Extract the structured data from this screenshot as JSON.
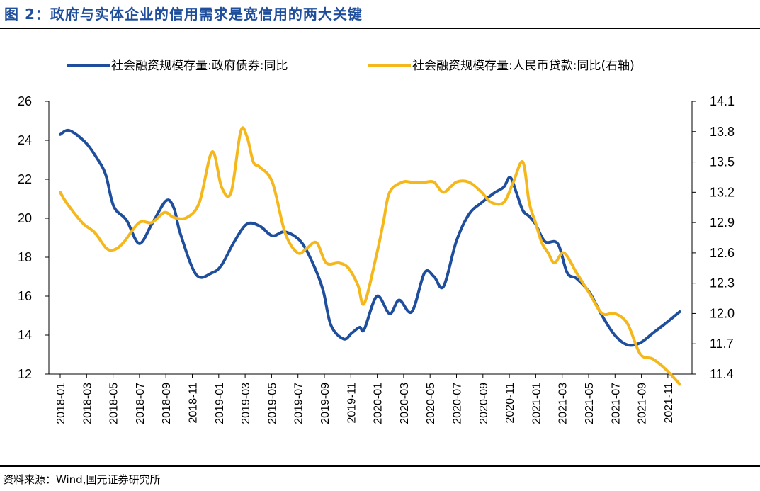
{
  "header": {
    "title": "图 2：政府与实体企业的信用需求是宽信用的两大关键"
  },
  "footer": {
    "source": "资料来源：Wind,国元证券研究所"
  },
  "chart_data": {
    "type": "line",
    "title": "",
    "xlabel": "",
    "ylabel": "",
    "legend_position": "top",
    "grid": false,
    "x_tick_labels": [
      "2018-01",
      "2018-03",
      "2018-05",
      "2018-07",
      "2018-09",
      "2018-11",
      "2019-01",
      "2019-03",
      "2019-05",
      "2019-07",
      "2019-09",
      "2019-11",
      "2020-01",
      "2020-03",
      "2020-05",
      "2020-07",
      "2020-09",
      "2020-11",
      "2021-01",
      "2021-03",
      "2021-05",
      "2021-07",
      "2021-09",
      "2021-11"
    ],
    "y_left": {
      "min": 12,
      "max": 26,
      "ticks": [
        12,
        14,
        16,
        18,
        20,
        22,
        24,
        26
      ]
    },
    "y_right": {
      "min": 11.4,
      "max": 14.1,
      "ticks": [
        "11.4",
        "11.7",
        "12.0",
        "12.3",
        "12.6",
        "12.9",
        "13.2",
        "13.5",
        "13.8",
        "14.1"
      ]
    },
    "series": [
      {
        "name": "社会融资规模存量:政府债券:同比",
        "axis": "left",
        "color": "#1f4e9c",
        "x": [
          2018.042,
          2018.1,
          2018.2,
          2018.28,
          2018.33,
          2018.38,
          2018.46,
          2018.54,
          2018.62,
          2018.71,
          2018.76,
          2018.8,
          2018.9,
          2019.0,
          2019.06,
          2019.14,
          2019.22,
          2019.3,
          2019.38,
          2019.46,
          2019.56,
          2019.64,
          2019.7,
          2019.75,
          2019.83,
          2019.88,
          2019.93,
          2019.96,
          2020.04,
          2020.12,
          2020.18,
          2020.26,
          2020.34,
          2020.4,
          2020.46,
          2020.54,
          2020.62,
          2020.7,
          2020.78,
          2020.84,
          2020.88,
          2020.92,
          2020.96,
          2021.0,
          2021.04,
          2021.1,
          2021.18,
          2021.24,
          2021.3,
          2021.38,
          2021.46,
          2021.54,
          2021.62,
          2021.7,
          2021.78,
          2021.86,
          2021.95
        ],
        "values": [
          24.3,
          24.5,
          23.9,
          23.0,
          22.2,
          20.6,
          19.9,
          18.7,
          19.7,
          20.9,
          20.5,
          19.2,
          17.1,
          17.2,
          17.6,
          18.8,
          19.7,
          19.6,
          19.1,
          19.3,
          18.8,
          17.6,
          16.3,
          14.5,
          13.8,
          14.1,
          14.4,
          14.3,
          16.0,
          15.1,
          15.8,
          15.2,
          17.2,
          17.0,
          16.5,
          18.8,
          20.2,
          20.8,
          21.3,
          21.6,
          22.1,
          21.3,
          20.4,
          20.1,
          19.7,
          18.8,
          18.7,
          17.2,
          16.9,
          16.2,
          15.0,
          14.0,
          13.5,
          13.6,
          14.1,
          14.6,
          15.2
        ]
      },
      {
        "name": "社会融资规模存量:人民币贷款:同比(右轴)",
        "axis": "right",
        "color": "#f5b81c",
        "x": [
          2018.042,
          2018.08,
          2018.18,
          2018.26,
          2018.33,
          2018.38,
          2018.44,
          2018.54,
          2018.62,
          2018.7,
          2018.76,
          2018.84,
          2018.92,
          2019.0,
          2019.06,
          2019.12,
          2019.18,
          2019.22,
          2019.26,
          2019.3,
          2019.38,
          2019.46,
          2019.54,
          2019.6,
          2019.66,
          2019.72,
          2019.8,
          2019.86,
          2019.92,
          2019.96,
          2020.04,
          2020.08,
          2020.12,
          2020.2,
          2020.26,
          2020.34,
          2020.4,
          2020.46,
          2020.54,
          2020.62,
          2020.7,
          2020.76,
          2020.84,
          2020.9,
          2020.96,
          2021.0,
          2021.04,
          2021.08,
          2021.12,
          2021.16,
          2021.22,
          2021.3,
          2021.38,
          2021.46,
          2021.54,
          2021.62,
          2021.7,
          2021.78,
          2021.86,
          2021.95
        ],
        "values": [
          13.2,
          13.1,
          12.9,
          12.8,
          12.65,
          12.63,
          12.7,
          12.9,
          12.9,
          13.0,
          12.95,
          12.95,
          13.1,
          13.6,
          13.25,
          13.2,
          13.8,
          13.75,
          13.5,
          13.45,
          13.3,
          12.8,
          12.6,
          12.65,
          12.7,
          12.5,
          12.5,
          12.45,
          12.28,
          12.1,
          12.6,
          12.9,
          13.2,
          13.3,
          13.3,
          13.3,
          13.3,
          13.2,
          13.3,
          13.3,
          13.2,
          13.1,
          13.1,
          13.3,
          13.5,
          13.1,
          12.9,
          12.7,
          12.6,
          12.5,
          12.6,
          12.4,
          12.2,
          12.0,
          12.0,
          11.9,
          11.6,
          11.55,
          11.45,
          11.3
        ]
      }
    ]
  }
}
